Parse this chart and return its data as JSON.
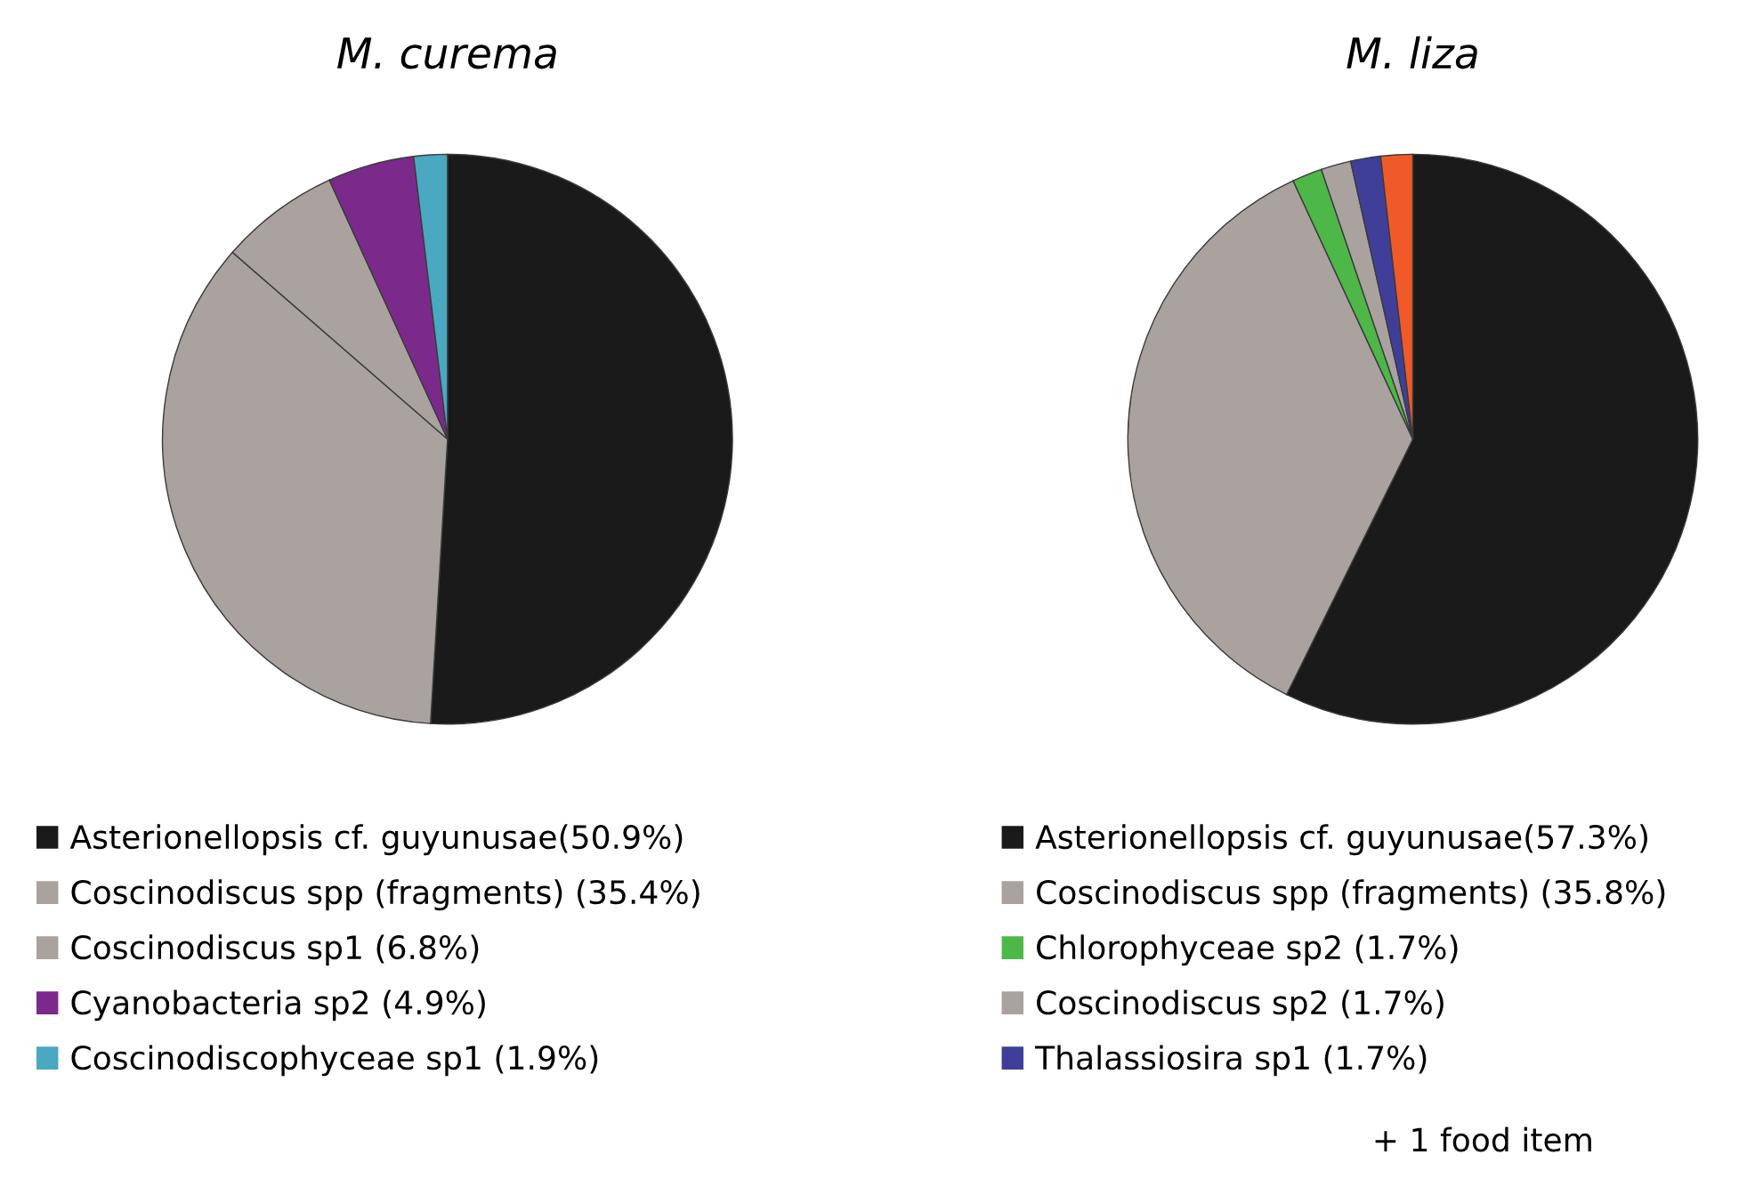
{
  "chart_data": [
    {
      "type": "pie",
      "title": "M. curema",
      "categories": [
        "Asterionellopsis cf. guyunusae(50.9%)",
        "Coscinodiscus spp (fragments) (35.4%)",
        "Coscinodiscus sp1 (6.8%)",
        "Cyanobacteria sp2 (4.9%)",
        "Coscinodiscophyceae sp1 (1.9%)"
      ],
      "values": [
        50.9,
        35.4,
        6.8,
        4.9,
        1.9
      ],
      "colors": [
        "#1a1a1a",
        "#a9a29f",
        "#a9a29f",
        "#7b2a8c",
        "#4aa8c0"
      ],
      "legend": "bottom"
    },
    {
      "type": "pie",
      "title": "M. liza",
      "categories": [
        "Asterionellopsis cf. guyunusae(57.3%)",
        "Coscinodiscus spp (fragments) (35.8%)",
        "Chlorophyceae sp2 (1.7%)",
        "Coscinodiscus sp2 (1.7%)",
        "Thalassiosira sp1 (1.7%)",
        null
      ],
      "values": [
        57.3,
        35.8,
        1.7,
        1.7,
        1.7,
        1.8
      ],
      "colors": [
        "#1a1a1a",
        "#a9a29f",
        "#4db848",
        "#a9a29f",
        "#3f3f9a",
        "#f05a28"
      ],
      "legend": "bottom",
      "annotations": [
        "+ 1 food item"
      ]
    }
  ]
}
